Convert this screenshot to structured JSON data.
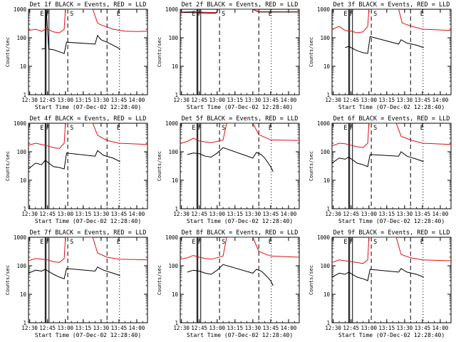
{
  "window": {
    "background": "#ffffff"
  },
  "colors": {
    "events": "#000000",
    "lld": "#e01010",
    "axes": "#000000"
  },
  "chart_data": [
    {
      "type": "line",
      "title": "Det 1f BLACK = Events, RED = LLD",
      "xlabel": "Start Time (07-Dec-02 12:28:40)",
      "ylabel": "Counts/sec",
      "xlim": [
        "12:29",
        "14:09"
      ],
      "ylim": [
        1,
        1000
      ],
      "yscale": "log",
      "xticks": [
        "12:30",
        "12:45",
        "13:00",
        "13:15",
        "13:30",
        "13:45",
        "14:00"
      ],
      "yticks": [
        "1",
        "10",
        "100",
        "1000"
      ],
      "markers": [
        "E",
        "F",
        "S",
        "E"
      ],
      "series": [
        {
          "name": "Events",
          "color": "#000000",
          "x": [
            "12:40",
            "12:43",
            "12:44",
            "12:46",
            "12:50",
            "12:55",
            "12:59",
            "13:01",
            "13:25",
            "13:27",
            "13:30",
            "13:35",
            "13:40",
            "13:44",
            "13:46"
          ],
          "values": [
            40,
            42,
            1000,
            40,
            38,
            32,
            28,
            70,
            60,
            120,
            85,
            70,
            55,
            45,
            40
          ]
        },
        {
          "name": "LLD",
          "color": "#e01010",
          "x": [
            "12:29",
            "12:35",
            "12:40",
            "12:44",
            "12:50",
            "12:55",
            "12:59",
            "13:00",
            "13:23",
            "13:27",
            "13:30",
            "13:35",
            "13:40",
            "13:50",
            "14:00",
            "14:09"
          ],
          "values": [
            180,
            200,
            170,
            210,
            160,
            150,
            200,
            1000,
            1000,
            330,
            280,
            240,
            200,
            170,
            165,
            170
          ]
        }
      ]
    },
    {
      "type": "line",
      "title": "Det 2f BLACK = Events, RED = LLD",
      "xlabel": "Start Time (07-Dec-02 12:28:40)",
      "ylabel": "Counts/sec",
      "xlim": [
        "12:29",
        "14:09"
      ],
      "ylim": [
        1,
        1000
      ],
      "yscale": "log",
      "xticks": [
        "12:30",
        "12:45",
        "13:00",
        "13:15",
        "13:30",
        "13:45",
        "14:00"
      ],
      "yticks": [
        "1",
        "10",
        "100",
        "1000"
      ],
      "markers": [
        "E",
        "F",
        "S",
        "E"
      ],
      "series": [
        {
          "name": "Events",
          "color": "#000000",
          "x": [
            "12:29",
            "12:40",
            "12:50",
            "12:59",
            "13:01",
            "13:30",
            "13:35",
            "14:09"
          ],
          "values": [
            780,
            760,
            740,
            730,
            1000,
            1000,
            800,
            800
          ]
        },
        {
          "name": "LLD",
          "color": "#e01010",
          "x": [
            "12:29",
            "12:40",
            "12:50",
            "12:59",
            "13:01",
            "13:30",
            "13:35",
            "14:09"
          ],
          "values": [
            800,
            820,
            780,
            760,
            1000,
            1000,
            820,
            820
          ]
        }
      ]
    },
    {
      "type": "line",
      "title": "Det 3f BLACK = Events, RED = LLD",
      "xlabel": "Start Time (07-Dec-02 12:28:40)",
      "ylabel": "Counts/sec",
      "xlim": [
        "12:29",
        "14:09"
      ],
      "ylim": [
        1,
        1000
      ],
      "yscale": "log",
      "xticks": [
        "12:30",
        "12:45",
        "13:00",
        "13:15",
        "13:30",
        "13:45",
        "14:00"
      ],
      "yticks": [
        "1",
        "10",
        "100",
        "1000"
      ],
      "markers": [
        "E",
        "F",
        "S",
        "E"
      ],
      "series": [
        {
          "name": "Events",
          "color": "#000000",
          "x": [
            "12:40",
            "12:43",
            "12:50",
            "12:55",
            "12:59",
            "13:01",
            "13:25",
            "13:27",
            "13:32",
            "13:40",
            "13:46"
          ],
          "values": [
            45,
            50,
            35,
            30,
            28,
            110,
            60,
            85,
            65,
            55,
            45
          ]
        },
        {
          "name": "LLD",
          "color": "#e01010",
          "x": [
            "12:29",
            "12:35",
            "12:40",
            "12:45",
            "12:50",
            "12:55",
            "12:59",
            "13:00",
            "13:25",
            "13:28",
            "13:35",
            "13:45",
            "14:09"
          ],
          "values": [
            200,
            250,
            180,
            170,
            150,
            160,
            250,
            1000,
            1000,
            330,
            260,
            200,
            180
          ]
        }
      ]
    },
    {
      "type": "line",
      "title": "Det 4f BLACK = Events, RED = LLD",
      "xlabel": "Start Time (07-Dec-02 12:28:40)",
      "ylabel": "Counts/sec",
      "xlim": [
        "12:29",
        "14:09"
      ],
      "ylim": [
        1,
        1000
      ],
      "yscale": "log",
      "xticks": [
        "12:30",
        "12:45",
        "13:00",
        "13:15",
        "13:30",
        "13:45",
        "14:00"
      ],
      "yticks": [
        "1",
        "10",
        "100",
        "1000"
      ],
      "markers": [
        "E",
        "F",
        "S",
        "E"
      ],
      "series": [
        {
          "name": "Events",
          "color": "#000000",
          "x": [
            "12:29",
            "12:35",
            "12:40",
            "12:43",
            "12:50",
            "12:55",
            "12:59",
            "13:01",
            "13:25",
            "13:27",
            "13:32",
            "13:40",
            "13:46"
          ],
          "values": [
            25,
            40,
            35,
            50,
            30,
            28,
            25,
            90,
            70,
            110,
            75,
            60,
            45
          ]
        },
        {
          "name": "LLD",
          "color": "#e01010",
          "x": [
            "12:29",
            "12:35",
            "12:40",
            "12:45",
            "12:50",
            "12:55",
            "12:59",
            "13:00",
            "13:23",
            "13:27",
            "13:35",
            "13:45",
            "14:09"
          ],
          "values": [
            170,
            200,
            180,
            160,
            140,
            130,
            200,
            1000,
            1000,
            380,
            250,
            200,
            180
          ]
        }
      ]
    },
    {
      "type": "line",
      "title": "Det 5f BLACK = Events, RED = LLD",
      "xlabel": "Start Time (07-Dec-02 12:28:40)",
      "ylabel": "Counts/sec",
      "xlim": [
        "12:29",
        "14:09"
      ],
      "ylim": [
        1,
        1000
      ],
      "yscale": "log",
      "xticks": [
        "12:30",
        "12:45",
        "13:00",
        "13:15",
        "13:30",
        "13:45",
        "14:00"
      ],
      "yticks": [
        "1",
        "10",
        "100",
        "1000"
      ],
      "markers": [
        "E",
        "F",
        "S",
        "E"
      ],
      "series": [
        {
          "name": "Events",
          "color": "#000000",
          "x": [
            "12:35",
            "12:40",
            "12:45",
            "12:50",
            "12:55",
            "13:00",
            "13:05",
            "13:30",
            "13:33",
            "13:37",
            "13:40",
            "13:45",
            "13:47"
          ],
          "values": [
            80,
            90,
            85,
            70,
            65,
            90,
            140,
            60,
            95,
            80,
            60,
            30,
            20
          ]
        },
        {
          "name": "LLD",
          "color": "#e01010",
          "x": [
            "12:29",
            "12:35",
            "12:40",
            "12:45",
            "12:50",
            "12:55",
            "13:00",
            "13:05",
            "13:08",
            "13:30",
            "13:35",
            "13:45",
            "14:09"
          ],
          "values": [
            200,
            230,
            300,
            240,
            220,
            210,
            230,
            260,
            1000,
            1000,
            400,
            260,
            250
          ]
        }
      ]
    },
    {
      "type": "line",
      "title": "Det 6f BLACK = Events, RED = LLD",
      "xlabel": "Start Time (07-Dec-02 12:28:40)",
      "ylabel": "Counts/sec",
      "xlim": [
        "12:29",
        "14:09"
      ],
      "ylim": [
        1,
        1000
      ],
      "yscale": "log",
      "xticks": [
        "12:30",
        "12:45",
        "13:00",
        "13:15",
        "13:30",
        "13:45",
        "14:00"
      ],
      "yticks": [
        "1",
        "10",
        "100",
        "1000"
      ],
      "markers": [
        "E",
        "F",
        "S",
        "E"
      ],
      "series": [
        {
          "name": "Events",
          "color": "#000000",
          "x": [
            "12:29",
            "12:35",
            "12:40",
            "12:43",
            "12:50",
            "12:55",
            "12:59",
            "13:01",
            "13:25",
            "13:27",
            "13:32",
            "13:40",
            "13:46"
          ],
          "values": [
            40,
            60,
            55,
            65,
            40,
            35,
            30,
            80,
            70,
            100,
            70,
            55,
            45
          ]
        },
        {
          "name": "LLD",
          "color": "#e01010",
          "x": [
            "12:29",
            "12:35",
            "12:40",
            "12:45",
            "12:50",
            "12:55",
            "12:59",
            "13:00",
            "13:23",
            "13:27",
            "13:35",
            "13:45",
            "14:09"
          ],
          "values": [
            160,
            200,
            190,
            170,
            150,
            140,
            200,
            1000,
            1000,
            350,
            260,
            200,
            180
          ]
        }
      ]
    },
    {
      "type": "line",
      "title": "Det 7f BLACK = Events, RED = LLD",
      "xlabel": "Start Time (07-Dec-02 12:28:40)",
      "ylabel": "Counts/sec",
      "xlim": [
        "12:29",
        "14:09"
      ],
      "ylim": [
        1,
        1000
      ],
      "yscale": "log",
      "xticks": [
        "12:30",
        "12:45",
        "13:00",
        "13:15",
        "13:30",
        "13:45",
        "14:00"
      ],
      "yticks": [
        "1",
        "10",
        "100",
        "1000"
      ],
      "markers": [
        "E",
        "F",
        "S",
        "E"
      ],
      "series": [
        {
          "name": "Events",
          "color": "#000000",
          "x": [
            "12:29",
            "12:35",
            "12:40",
            "12:43",
            "12:50",
            "12:55",
            "12:59",
            "13:01",
            "13:25",
            "13:27",
            "13:32",
            "13:40",
            "13:46"
          ],
          "values": [
            55,
            70,
            65,
            75,
            50,
            40,
            35,
            80,
            65,
            90,
            70,
            55,
            45
          ]
        },
        {
          "name": "LLD",
          "color": "#e01010",
          "x": [
            "12:29",
            "12:35",
            "12:40",
            "12:45",
            "12:50",
            "12:55",
            "12:59",
            "13:00",
            "13:23",
            "13:27",
            "13:35",
            "13:45",
            "14:09"
          ],
          "values": [
            150,
            180,
            170,
            160,
            140,
            130,
            180,
            1000,
            1000,
            280,
            200,
            170,
            160
          ]
        }
      ]
    },
    {
      "type": "line",
      "title": "Det 8f BLACK = Events, RED = LLD",
      "xlabel": "Start Time (07-Dec-02 12:28:40)",
      "ylabel": "Counts/sec",
      "xlim": [
        "12:29",
        "14:09"
      ],
      "ylim": [
        1,
        1000
      ],
      "yscale": "log",
      "xticks": [
        "12:30",
        "12:45",
        "13:00",
        "13:15",
        "13:30",
        "13:45",
        "14:00"
      ],
      "yticks": [
        "1",
        "10",
        "100",
        "1000"
      ],
      "markers": [
        "E",
        "F",
        "S",
        "E"
      ],
      "series": [
        {
          "name": "Events",
          "color": "#000000",
          "x": [
            "12:35",
            "12:40",
            "12:45",
            "12:50",
            "12:55",
            "13:00",
            "13:05",
            "13:30",
            "13:33",
            "13:37",
            "13:40",
            "13:45",
            "13:47"
          ],
          "values": [
            60,
            70,
            65,
            55,
            50,
            70,
            110,
            55,
            75,
            65,
            50,
            30,
            20
          ]
        },
        {
          "name": "LLD",
          "color": "#e01010",
          "x": [
            "12:29",
            "12:35",
            "12:40",
            "12:45",
            "12:50",
            "12:55",
            "13:00",
            "13:05",
            "13:08",
            "13:30",
            "13:35",
            "13:45",
            "14:09"
          ],
          "values": [
            170,
            190,
            230,
            200,
            180,
            170,
            190,
            220,
            1000,
            1000,
            320,
            220,
            200
          ]
        }
      ]
    },
    {
      "type": "line",
      "title": "Det 9f BLACK = Events, RED = LLD",
      "xlabel": "Start Time (07-Dec-02 12:28:40)",
      "ylabel": "Counts/sec",
      "xlim": [
        "12:29",
        "14:09"
      ],
      "ylim": [
        1,
        1000
      ],
      "yscale": "log",
      "xticks": [
        "12:30",
        "12:45",
        "13:00",
        "13:15",
        "13:30",
        "13:45",
        "14:00"
      ],
      "yticks": [
        "1",
        "10",
        "100",
        "1000"
      ],
      "markers": [
        "E",
        "F",
        "S",
        "E"
      ],
      "series": [
        {
          "name": "Events",
          "color": "#000000",
          "x": [
            "12:29",
            "12:35",
            "12:40",
            "12:43",
            "12:50",
            "12:55",
            "12:59",
            "13:01",
            "13:25",
            "13:27",
            "13:32",
            "13:40",
            "13:46"
          ],
          "values": [
            40,
            55,
            50,
            60,
            40,
            35,
            30,
            75,
            60,
            80,
            60,
            50,
            40
          ]
        },
        {
          "name": "LLD",
          "color": "#e01010",
          "x": [
            "12:29",
            "12:35",
            "12:40",
            "12:45",
            "12:50",
            "12:55",
            "12:59",
            "13:00",
            "13:23",
            "13:27",
            "13:35",
            "13:45",
            "14:09"
          ],
          "values": [
            130,
            160,
            150,
            140,
            130,
            120,
            160,
            1000,
            1000,
            250,
            190,
            160,
            150
          ]
        }
      ]
    }
  ]
}
